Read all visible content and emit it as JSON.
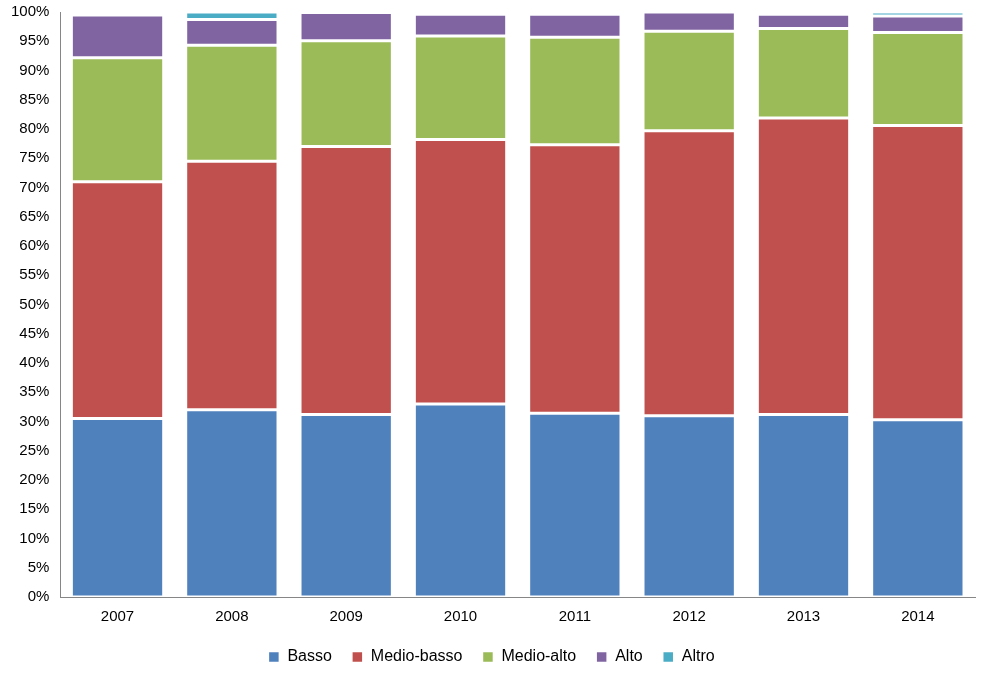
{
  "chart_data": {
    "type": "bar",
    "stacked": true,
    "categories": [
      "2007",
      "2008",
      "2009",
      "2010",
      "2011",
      "2012",
      "2013",
      "2014"
    ],
    "series": [
      {
        "name": "Basso",
        "color": "#4f81bd",
        "values": [
          30.5,
          32.0,
          31.2,
          33.0,
          31.4,
          31.0,
          31.2,
          30.3
        ]
      },
      {
        "name": "Medio-basso",
        "color": "#c0504d",
        "values": [
          40.5,
          42.5,
          45.8,
          45.2,
          45.9,
          48.7,
          50.7,
          50.3
        ]
      },
      {
        "name": "Medio-alto",
        "color": "#9bbb59",
        "values": [
          21.2,
          19.8,
          18.1,
          17.7,
          18.4,
          17.0,
          15.3,
          15.9
        ]
      },
      {
        "name": "Alto",
        "color": "#8064a2",
        "values": [
          7.3,
          4.4,
          4.8,
          3.7,
          3.9,
          3.3,
          2.4,
          2.8
        ]
      },
      {
        "name": "Altro",
        "color": "#4bacc6",
        "values": [
          0.5,
          1.3,
          0.1,
          0.4,
          0.4,
          0.0,
          0.4,
          0.7
        ]
      }
    ],
    "ylim": [
      0,
      100
    ],
    "yticks": [
      {
        "value": 0,
        "label": "0%"
      },
      {
        "value": 5,
        "label": "5%"
      },
      {
        "value": 10,
        "label": "10%"
      },
      {
        "value": 15,
        "label": "15%"
      },
      {
        "value": 20,
        "label": "20%"
      },
      {
        "value": 25,
        "label": "25%"
      },
      {
        "value": 30,
        "label": "30%"
      },
      {
        "value": 35,
        "label": "35%"
      },
      {
        "value": 40,
        "label": "40%"
      },
      {
        "value": 45,
        "label": "45%"
      },
      {
        "value": 50,
        "label": "50%"
      },
      {
        "value": 55,
        "label": "55%"
      },
      {
        "value": 60,
        "label": "60%"
      },
      {
        "value": 65,
        "label": "65%"
      },
      {
        "value": 70,
        "label": "70%"
      },
      {
        "value": 75,
        "label": "75%"
      },
      {
        "value": 80,
        "label": "80%"
      },
      {
        "value": 85,
        "label": "85%"
      },
      {
        "value": 90,
        "label": "90%"
      },
      {
        "value": 95,
        "label": "95%"
      },
      {
        "value": 100,
        "label": "100%"
      }
    ],
    "grid": false,
    "legend": "bottom"
  }
}
